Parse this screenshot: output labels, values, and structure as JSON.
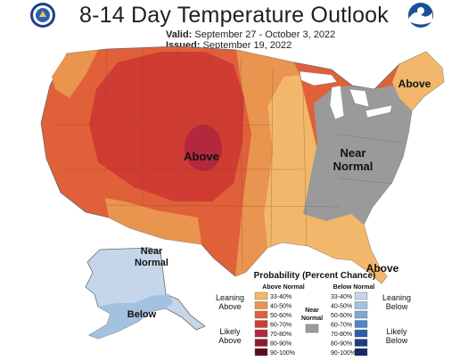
{
  "header": {
    "title": "8-14 Day Temperature Outlook",
    "valid_label": "Valid:",
    "valid_dates": "September 27 - October 3, 2022",
    "issued_label": "Issued:",
    "issued_date": "September 19, 2022",
    "left_logo_icon": "doc-seal-icon",
    "right_logo_icon": "noaa-logo-icon"
  },
  "map_labels": {
    "above_center": "Above",
    "above_northeast": "Above",
    "above_florida": "Above",
    "near_normal_line1": "Near",
    "near_normal_line2": "Normal",
    "alaska_near_line1": "Near",
    "alaska_near_line2": "Normal",
    "alaska_below": "Below"
  },
  "legend": {
    "title": "Probability (Percent Chance)",
    "above_header": "Above Normal",
    "below_header": "Below Normal",
    "leaning_above": [
      "Leaning",
      "Above"
    ],
    "likely_above": [
      "Likely",
      "Above"
    ],
    "leaning_below": [
      "Leaning",
      "Below"
    ],
    "likely_below": [
      "Likely",
      "Below"
    ],
    "near_normal": [
      "Near",
      "Normal"
    ],
    "above_bins": [
      {
        "label": "33-40%",
        "color": "#f2b76a"
      },
      {
        "label": "40-50%",
        "color": "#e9944f"
      },
      {
        "label": "50-60%",
        "color": "#e0603a"
      },
      {
        "label": "60-70%",
        "color": "#d03b32"
      },
      {
        "label": "70-80%",
        "color": "#b3283c"
      },
      {
        "label": "80-90%",
        "color": "#8c1a30"
      },
      {
        "label": "90-100%",
        "color": "#5c0e1c"
      }
    ],
    "below_bins": [
      {
        "label": "33-40%",
        "color": "#c5d6ea"
      },
      {
        "label": "40-50%",
        "color": "#a3c2e0"
      },
      {
        "label": "50-60%",
        "color": "#7ea8d6"
      },
      {
        "label": "60-70%",
        "color": "#4b86c6"
      },
      {
        "label": "70-80%",
        "color": "#2a5ea8"
      },
      {
        "label": "80-90%",
        "color": "#1d3c86"
      },
      {
        "label": "90-100%",
        "color": "#142766"
      }
    ],
    "near_color": "#9a9a9a"
  }
}
